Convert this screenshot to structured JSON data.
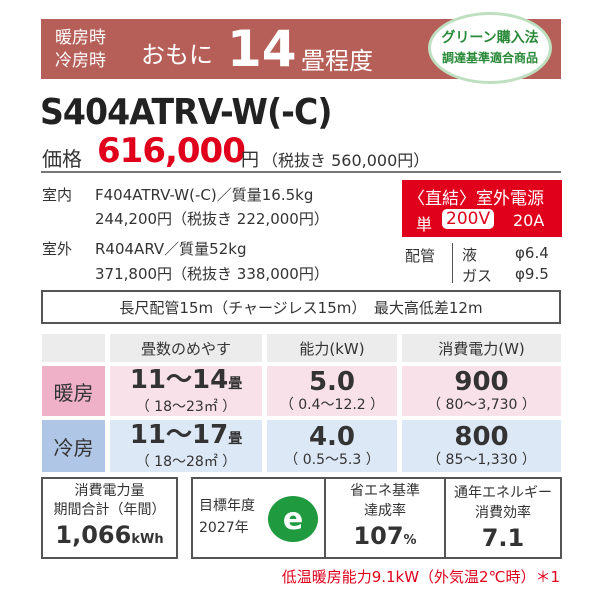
{
  "banner": {
    "modes_heat": "暖房時",
    "modes_cool": "冷房時",
    "mainly": "おもに",
    "size": "14",
    "unit": "畳程度",
    "badge_line1": "グリーン購入法",
    "badge_line2": "調達基準適合商品"
  },
  "model": "S404ATRV-W(-C)",
  "price": {
    "label": "価格",
    "value": "616,000",
    "yen": "円",
    "excl": "（税抜き 560,000円）"
  },
  "indoor": {
    "label": "室内",
    "model": "F404ATRV-W(-C)／質量16.5kg",
    "price": "244,200円（税抜き 222,000円）"
  },
  "outdoor": {
    "label": "室外",
    "model": "R404ARV／質量52kg",
    "price": "371,800円（税抜き 338,000円）"
  },
  "power": {
    "title": "〈直結〉室外電源",
    "single": "単",
    "voltage": "200V",
    "amp": "20A"
  },
  "piping": {
    "label": "配管",
    "liquid": "液",
    "liquid_size": "φ6.4",
    "gas": "ガス",
    "gas_size": "φ9.5"
  },
  "pipe_length": "長尺配管15m（チャージレス15m）　最大高低差12m",
  "table": {
    "headers": [
      "畳数のめやす",
      "能力(kW)",
      "消費電力(W)"
    ],
    "rows": [
      {
        "label": "暖房",
        "tatami": "11～14",
        "tatami_unit": "畳",
        "area": "（ 18～23㎡ ）",
        "capacity": "5.0",
        "capacity_range": "（ 0.4～12.2 ）",
        "power": "900",
        "power_range": "（ 80～3,730 ）"
      },
      {
        "label": "冷房",
        "tatami": "11～17",
        "tatami_unit": "畳",
        "area": "（ 18～28㎡ ）",
        "capacity": "4.0",
        "capacity_range": "（ 0.5～5.3 ）",
        "power": "800",
        "power_range": "（ 85～1,330 ）"
      }
    ]
  },
  "annual": {
    "line1": "消費電力量",
    "line2": "期間合計（年間）",
    "value": "1,066",
    "unit": "kWh"
  },
  "target": {
    "line1": "目標年度",
    "line2": "2027年",
    "logo": "e"
  },
  "saving": {
    "line1": "省エネ基準",
    "line2": "達成率",
    "value": "107",
    "unit": "%"
  },
  "apf": {
    "line1": "通年エネルギー",
    "line2": "消費効率",
    "value": "7.1"
  },
  "footnote": "低温暖房能力9.1kW（外気温2℃時）＊1",
  "colors": {
    "banner": "#b65f58",
    "red": "#e0001b",
    "heat": "#f9e1ea",
    "heat_label": "#efb1c8",
    "cool": "#dde8f6",
    "cool_label": "#b0c6e6",
    "green": "#1f9a3e"
  }
}
